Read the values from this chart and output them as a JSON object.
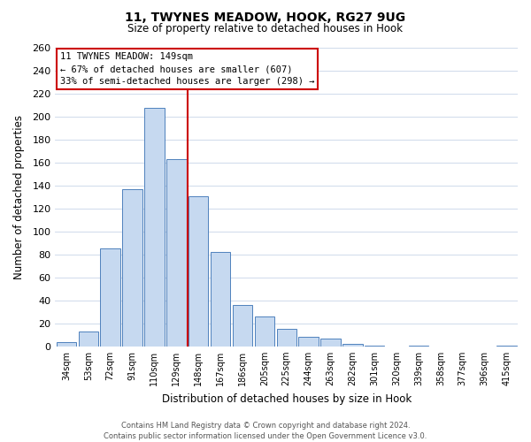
{
  "title": "11, TWYNES MEADOW, HOOK, RG27 9UG",
  "subtitle": "Size of property relative to detached houses in Hook",
  "xlabel": "Distribution of detached houses by size in Hook",
  "ylabel": "Number of detached properties",
  "bar_labels": [
    "34sqm",
    "53sqm",
    "72sqm",
    "91sqm",
    "110sqm",
    "129sqm",
    "148sqm",
    "167sqm",
    "186sqm",
    "205sqm",
    "225sqm",
    "244sqm",
    "263sqm",
    "282sqm",
    "301sqm",
    "320sqm",
    "339sqm",
    "358sqm",
    "377sqm",
    "396sqm",
    "415sqm"
  ],
  "bar_values": [
    4,
    13,
    85,
    137,
    208,
    163,
    131,
    82,
    36,
    26,
    15,
    8,
    7,
    2,
    1,
    0,
    1,
    0,
    0,
    0,
    1
  ],
  "bar_color": "#c6d9f0",
  "bar_edge_color": "#4f81bd",
  "vline_x_pos": 5.5,
  "vline_color": "#cc0000",
  "ylim": [
    0,
    260
  ],
  "yticks": [
    0,
    20,
    40,
    60,
    80,
    100,
    120,
    140,
    160,
    180,
    200,
    220,
    240,
    260
  ],
  "annotation_title": "11 TWYNES MEADOW: 149sqm",
  "annotation_line1": "← 67% of detached houses are smaller (607)",
  "annotation_line2": "33% of semi-detached houses are larger (298) →",
  "annotation_box_color": "#ffffff",
  "annotation_box_edge": "#cc0000",
  "footer_line1": "Contains HM Land Registry data © Crown copyright and database right 2024.",
  "footer_line2": "Contains public sector information licensed under the Open Government Licence v3.0.",
  "bg_color": "#ffffff",
  "grid_color": "#c8d4e8"
}
